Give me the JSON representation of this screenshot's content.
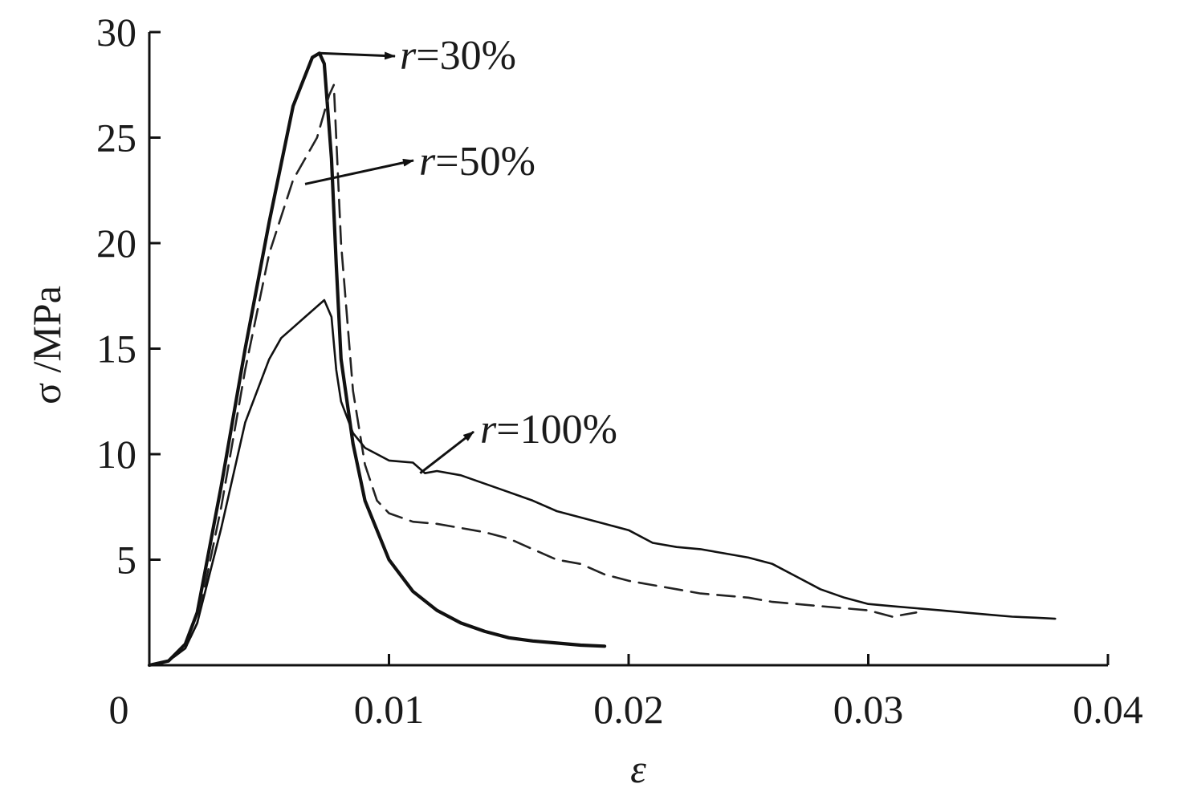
{
  "chart_data": {
    "type": "line",
    "title": "",
    "xlabel": "ε",
    "ylabel": "σ /MPa",
    "xlim": [
      0,
      0.04
    ],
    "ylim": [
      0,
      30
    ],
    "x_ticks": [
      0,
      0.01,
      0.02,
      0.03,
      0.04
    ],
    "x_tick_labels": [
      "0",
      "0.01",
      "0.02",
      "0.03",
      "0.04"
    ],
    "y_ticks": [
      5,
      10,
      15,
      20,
      25,
      30
    ],
    "y_tick_labels": [
      "5",
      "10",
      "15",
      "20",
      "25",
      "30"
    ],
    "grid": false,
    "legend": "none",
    "series": [
      {
        "label": "30%",
        "style": "solid-thick",
        "color": "#111111",
        "x": [
          0,
          0.0008,
          0.0015,
          0.002,
          0.003,
          0.004,
          0.005,
          0.006,
          0.0068,
          0.0071,
          0.0073,
          0.0076,
          0.0078,
          0.008,
          0.0085,
          0.009,
          0.01,
          0.011,
          0.012,
          0.013,
          0.014,
          0.015,
          0.016,
          0.017,
          0.018,
          0.019
        ],
        "y": [
          0,
          0.2,
          1.0,
          2.5,
          8.5,
          15.0,
          21.0,
          26.5,
          28.8,
          29.0,
          28.5,
          24.0,
          19.0,
          14.5,
          10.5,
          7.8,
          5.0,
          3.5,
          2.6,
          2.0,
          1.6,
          1.3,
          1.15,
          1.05,
          0.95,
          0.9
        ]
      },
      {
        "label": "50%",
        "style": "dashed",
        "color": "#222222",
        "x": [
          0,
          0.0008,
          0.0015,
          0.002,
          0.003,
          0.004,
          0.005,
          0.006,
          0.007,
          0.0075,
          0.0077,
          0.008,
          0.0085,
          0.009,
          0.0095,
          0.01,
          0.011,
          0.012,
          0.013,
          0.014,
          0.015,
          0.016,
          0.017,
          0.018,
          0.019,
          0.02,
          0.021,
          0.022,
          0.023,
          0.024,
          0.025,
          0.026,
          0.027,
          0.028,
          0.029,
          0.03,
          0.031,
          0.032
        ],
        "y": [
          0,
          0.2,
          0.8,
          2.0,
          7.5,
          14.0,
          19.5,
          23.0,
          25.0,
          27.0,
          27.5,
          20.0,
          13.0,
          9.5,
          7.8,
          7.2,
          6.8,
          6.7,
          6.5,
          6.3,
          6.0,
          5.5,
          5.0,
          4.8,
          4.3,
          4.0,
          3.8,
          3.6,
          3.4,
          3.3,
          3.2,
          3.0,
          2.9,
          2.8,
          2.7,
          2.6,
          2.3,
          2.5
        ]
      },
      {
        "label": "100%",
        "style": "solid",
        "color": "#111111",
        "x": [
          0,
          0.0008,
          0.0015,
          0.002,
          0.003,
          0.004,
          0.005,
          0.0055,
          0.006,
          0.0065,
          0.007,
          0.0073,
          0.0076,
          0.0078,
          0.008,
          0.0085,
          0.009,
          0.0095,
          0.01,
          0.011,
          0.0115,
          0.012,
          0.013,
          0.014,
          0.015,
          0.016,
          0.017,
          0.018,
          0.019,
          0.02,
          0.021,
          0.022,
          0.023,
          0.024,
          0.025,
          0.026,
          0.027,
          0.028,
          0.029,
          0.03,
          0.031,
          0.032,
          0.033,
          0.034,
          0.035,
          0.036,
          0.037,
          0.0378
        ],
        "y": [
          0,
          0.2,
          0.8,
          2.0,
          6.5,
          11.5,
          14.5,
          15.5,
          16.0,
          16.5,
          17.0,
          17.3,
          16.5,
          14.0,
          12.5,
          11.0,
          10.3,
          10.0,
          9.7,
          9.6,
          9.1,
          9.2,
          9.0,
          8.6,
          8.2,
          7.8,
          7.3,
          7.0,
          6.7,
          6.4,
          5.8,
          5.6,
          5.5,
          5.3,
          5.1,
          4.8,
          4.2,
          3.6,
          3.2,
          2.9,
          2.8,
          2.7,
          2.6,
          2.5,
          2.4,
          2.3,
          2.25,
          2.2
        ]
      }
    ],
    "annotations": [
      {
        "prefix": "r",
        "text": "=30%",
        "target_x": 0.0071,
        "target_y": 29.0
      },
      {
        "prefix": "r",
        "text": "=50%",
        "target_x": 0.0065,
        "target_y": 22.8
      },
      {
        "prefix": "r",
        "text": "=100%",
        "target_x": 0.0113,
        "target_y": 9.1
      }
    ]
  }
}
